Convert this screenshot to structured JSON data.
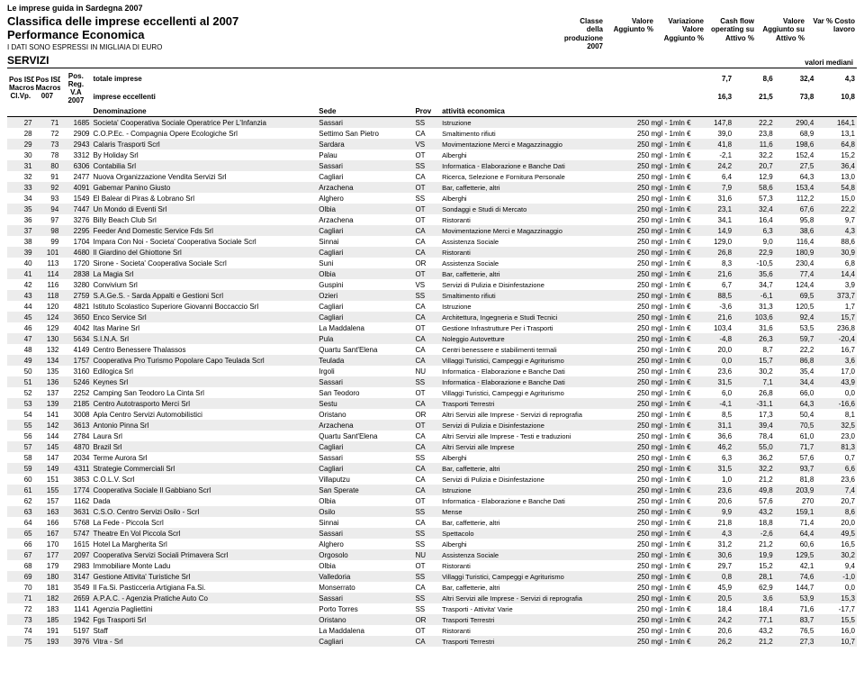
{
  "top_label": "Le imprese guida in Sardegna 2007",
  "title1": "Classifica delle imprese eccellenti al 2007",
  "title2": "Performance Economica",
  "subtitle": "I DATI SONO ESPRESSI IN MIGLIAIA DI EURO",
  "section": "SERVIZI",
  "valori_mediani": "valori mediani",
  "metric_headers": [
    [
      "Classe",
      "della produzione",
      "2007"
    ],
    [
      "Valore",
      "Aggiunto %",
      ""
    ],
    [
      "Variazione",
      "Valore",
      "Aggiunto %"
    ],
    [
      "Cash flow",
      "operating su",
      "Attivo %"
    ],
    [
      "Valore",
      "Aggiunto su",
      "Attivo %"
    ],
    [
      "Var % Costo",
      "lavoro",
      ""
    ]
  ],
  "pos_headers": [
    [
      "Pos ISD",
      "Macroset.",
      "Cl.Vp."
    ],
    [
      "Pos ISD",
      "Macroset.2",
      "007"
    ],
    [
      "Pos.",
      "Reg.",
      "V.A",
      "2007"
    ]
  ],
  "summary": [
    {
      "label": "totale imprese",
      "v": [
        "7,7",
        "8,6",
        "32,4",
        "4,3"
      ]
    },
    {
      "label": "imprese eccellenti",
      "v": [
        "16,3",
        "21,5",
        "73,8",
        "10,8"
      ]
    }
  ],
  "col_headers": [
    "Denominazione",
    "Sede",
    "Prov",
    "attività economica"
  ],
  "classe_label": "250 mgl - 1mln €",
  "rows": [
    {
      "p": [
        "27",
        "71",
        "1685"
      ],
      "d": "Societa' Cooperativa Sociale Operatrice Per L'Infanzia",
      "s": "Sassari",
      "pr": "SS",
      "a": "Istruzione",
      "v": [
        "147,8",
        "22,2",
        "290,4",
        "164,1"
      ]
    },
    {
      "p": [
        "28",
        "72",
        "2909"
      ],
      "d": "C.O.P.Ec. - Compagnia Opere Ecologiche Srl",
      "s": "Settimo San Pietro",
      "pr": "CA",
      "a": "Smaltimento rifiuti",
      "v": [
        "39,0",
        "23,8",
        "68,9",
        "13,1"
      ]
    },
    {
      "p": [
        "29",
        "73",
        "2943"
      ],
      "d": "Calaris Trasporti Scrl",
      "s": "Sardara",
      "pr": "VS",
      "a": "Movimentazione Merci e Magazzinaggio",
      "v": [
        "41,8",
        "11,6",
        "198,6",
        "64,8"
      ]
    },
    {
      "p": [
        "30",
        "78",
        "3312"
      ],
      "d": "By Holiday Srl",
      "s": "Palau",
      "pr": "OT",
      "a": "Alberghi",
      "v": [
        "-2,1",
        "32,2",
        "152,4",
        "15,2"
      ]
    },
    {
      "p": [
        "31",
        "80",
        "6306"
      ],
      "d": "Contabilia Srl",
      "s": "Sassari",
      "pr": "SS",
      "a": "Informatica - Elaborazione e Banche Dati",
      "v": [
        "24,2",
        "20,7",
        "27,5",
        "36,4"
      ]
    },
    {
      "p": [
        "32",
        "91",
        "2477"
      ],
      "d": "Nuova Organizzazione Vendita Servizi Srl",
      "s": "Cagliari",
      "pr": "CA",
      "a": "Ricerca, Selezione e Fornitura Personale",
      "v": [
        "6,4",
        "12,9",
        "64,3",
        "13,0"
      ]
    },
    {
      "p": [
        "33",
        "92",
        "4091"
      ],
      "d": "Gabemar Panino Giusto",
      "s": "Arzachena",
      "pr": "OT",
      "a": "Bar, caffetterie, altri",
      "v": [
        "7,9",
        "58,6",
        "153,4",
        "54,8"
      ]
    },
    {
      "p": [
        "34",
        "93",
        "1549"
      ],
      "d": "El Balear di Piras & Lobrano Srl",
      "s": "Alghero",
      "pr": "SS",
      "a": "Alberghi",
      "v": [
        "31,6",
        "57,3",
        "112,2",
        "15,0"
      ]
    },
    {
      "p": [
        "35",
        "94",
        "7447"
      ],
      "d": "Un Mondo di Eventi Srl",
      "s": "Olbia",
      "pr": "OT",
      "a": "Sondaggi e Studi di Mercato",
      "v": [
        "23,1",
        "32,4",
        "67,6",
        "22,2"
      ]
    },
    {
      "p": [
        "36",
        "97",
        "3276"
      ],
      "d": "Billy Beach Club Srl",
      "s": "Arzachena",
      "pr": "OT",
      "a": "Ristoranti",
      "v": [
        "34,1",
        "16,4",
        "95,8",
        "9,7"
      ]
    },
    {
      "p": [
        "37",
        "98",
        "2295"
      ],
      "d": "Feeder And Domestic Service Fds Srl",
      "s": "Cagliari",
      "pr": "CA",
      "a": "Movimentazione Merci e Magazzinaggio",
      "v": [
        "14,9",
        "6,3",
        "38,6",
        "4,3"
      ]
    },
    {
      "p": [
        "38",
        "99",
        "1704"
      ],
      "d": "Impara Con Noi - Societa' Cooperativa Sociale Scrl",
      "s": "Sinnai",
      "pr": "CA",
      "a": "Assistenza Sociale",
      "v": [
        "129,0",
        "9,0",
        "116,4",
        "88,6"
      ]
    },
    {
      "p": [
        "39",
        "101",
        "4680"
      ],
      "d": "Il Giardino del Ghiottone Srl",
      "s": "Cagliari",
      "pr": "CA",
      "a": "Ristoranti",
      "v": [
        "26,8",
        "22,9",
        "180,9",
        "30,9"
      ]
    },
    {
      "p": [
        "40",
        "113",
        "1720"
      ],
      "d": "Sirone - Societa' Cooperativa Sociale Scrl",
      "s": "Suni",
      "pr": "OR",
      "a": "Assistenza Sociale",
      "v": [
        "8,3",
        "-10,5",
        "230,4",
        "6,8"
      ]
    },
    {
      "p": [
        "41",
        "114",
        "2838"
      ],
      "d": "La Magia Srl",
      "s": "Olbia",
      "pr": "OT",
      "a": "Bar, caffetterie, altri",
      "v": [
        "21,6",
        "35,6",
        "77,4",
        "14,4"
      ]
    },
    {
      "p": [
        "42",
        "116",
        "3280"
      ],
      "d": "Convivium Srl",
      "s": "Guspini",
      "pr": "VS",
      "a": "Servizi di Pulizia e Disinfestazione",
      "v": [
        "6,7",
        "34,7",
        "124,4",
        "3,9"
      ]
    },
    {
      "p": [
        "43",
        "118",
        "2759"
      ],
      "d": "S.A.Ge.S. - Sarda Appalti e Gestioni Scrl",
      "s": "Ozieri",
      "pr": "SS",
      "a": "Smaltimento rifiuti",
      "v": [
        "88,5",
        "-6,1",
        "69,5",
        "373,7"
      ]
    },
    {
      "p": [
        "44",
        "120",
        "4821"
      ],
      "d": "Istituto Scolastico Superiore Giovanni Boccaccio Srl",
      "s": "Cagliari",
      "pr": "CA",
      "a": "Istruzione",
      "v": [
        "-3,6",
        "31,3",
        "120,5",
        "1,7"
      ]
    },
    {
      "p": [
        "45",
        "124",
        "3650"
      ],
      "d": "Enco Service Srl",
      "s": "Cagliari",
      "pr": "CA",
      "a": "Architettura, Ingegneria e Studi Tecnici",
      "v": [
        "21,6",
        "103,6",
        "92,4",
        "15,7"
      ]
    },
    {
      "p": [
        "46",
        "129",
        "4042"
      ],
      "d": "Itas Marine Srl",
      "s": "La Maddalena",
      "pr": "OT",
      "a": "Gestione Infrastrutture Per i Trasporti",
      "v": [
        "103,4",
        "31,6",
        "53,5",
        "236,8"
      ]
    },
    {
      "p": [
        "47",
        "130",
        "5634"
      ],
      "d": "S.I.N.A. Srl",
      "s": "Pula",
      "pr": "CA",
      "a": "Noleggio Autovetture",
      "v": [
        "-4,8",
        "26,3",
        "59,7",
        "-20,4"
      ]
    },
    {
      "p": [
        "48",
        "132",
        "4149"
      ],
      "d": "Centro Benessere Thalassos",
      "s": "Quartu Sant'Elena",
      "pr": "CA",
      "a": "Centri benessere e stabilimenti termali",
      "v": [
        "20,0",
        "8,7",
        "22,2",
        "16,7"
      ]
    },
    {
      "p": [
        "49",
        "134",
        "1757"
      ],
      "d": "Cooperativa Pro Turismo Popolare Capo Teulada Scrl",
      "s": "Teulada",
      "pr": "CA",
      "a": "Villaggi Turistici, Campeggi e Agriturismo",
      "v": [
        "0,0",
        "15,7",
        "86,8",
        "3,6"
      ]
    },
    {
      "p": [
        "50",
        "135",
        "3160"
      ],
      "d": "Edilogica Srl",
      "s": "Irgoli",
      "pr": "NU",
      "a": "Informatica - Elaborazione e Banche Dati",
      "v": [
        "23,6",
        "30,2",
        "35,4",
        "17,0"
      ]
    },
    {
      "p": [
        "51",
        "136",
        "5246"
      ],
      "d": "Keynes Srl",
      "s": "Sassari",
      "pr": "SS",
      "a": "Informatica - Elaborazione e Banche Dati",
      "v": [
        "31,5",
        "7,1",
        "34,4",
        "43,9"
      ]
    },
    {
      "p": [
        "52",
        "137",
        "2252"
      ],
      "d": "Camping San Teodoro La Cinta Srl",
      "s": "San Teodoro",
      "pr": "OT",
      "a": "Villaggi Turistici, Campeggi e Agriturismo",
      "v": [
        "6,0",
        "26,8",
        "66,0",
        "0,0"
      ]
    },
    {
      "p": [
        "53",
        "139",
        "2185"
      ],
      "d": "Centro Autotrasporto Merci Srl",
      "s": "Sestu",
      "pr": "CA",
      "a": "Trasporti Terrestri",
      "v": [
        "-4,1",
        "-31,1",
        "64,3",
        "-16,6"
      ]
    },
    {
      "p": [
        "54",
        "141",
        "3008"
      ],
      "d": "Apla Centro Servizi Automobilistici",
      "s": "Oristano",
      "pr": "OR",
      "a": "Altri Servizi alle Imprese - Servizi di reprografia",
      "v": [
        "8,5",
        "17,3",
        "50,4",
        "8,1"
      ]
    },
    {
      "p": [
        "55",
        "142",
        "3613"
      ],
      "d": "Antonio Pinna Srl",
      "s": "Arzachena",
      "pr": "OT",
      "a": "Servizi di Pulizia e Disinfestazione",
      "v": [
        "31,1",
        "39,4",
        "70,5",
        "32,5"
      ]
    },
    {
      "p": [
        "56",
        "144",
        "2784"
      ],
      "d": "Laura Srl",
      "s": "Quartu Sant'Elena",
      "pr": "CA",
      "a": "Altri Servizi alle Imprese - Testi e traduzioni",
      "v": [
        "36,6",
        "78,4",
        "61,0",
        "23,0"
      ]
    },
    {
      "p": [
        "57",
        "145",
        "4870"
      ],
      "d": "Brazil Srl",
      "s": "Cagliari",
      "pr": "CA",
      "a": "Altri Servizi alle Imprese",
      "v": [
        "46,2",
        "55,0",
        "71,7",
        "81,3"
      ]
    },
    {
      "p": [
        "58",
        "147",
        "2034"
      ],
      "d": "Terme Aurora Srl",
      "s": "Sassari",
      "pr": "SS",
      "a": "Alberghi",
      "v": [
        "6,3",
        "36,2",
        "57,6",
        "0,7"
      ]
    },
    {
      "p": [
        "59",
        "149",
        "4311"
      ],
      "d": "Strategie Commerciali Srl",
      "s": "Cagliari",
      "pr": "CA",
      "a": "Bar, caffetterie, altri",
      "v": [
        "31,5",
        "32,2",
        "93,7",
        "6,6"
      ]
    },
    {
      "p": [
        "60",
        "151",
        "3853"
      ],
      "d": "C.O.L.V. Scrl",
      "s": "Villaputzu",
      "pr": "CA",
      "a": "Servizi di Pulizia e Disinfestazione",
      "v": [
        "1,0",
        "21,2",
        "81,8",
        "23,6"
      ]
    },
    {
      "p": [
        "61",
        "155",
        "1774"
      ],
      "d": "Cooperativa Sociale Il Gabbiano Scrl",
      "s": "San Sperate",
      "pr": "CA",
      "a": "Istruzione",
      "v": [
        "23,6",
        "49,8",
        "203,9",
        "7,4"
      ]
    },
    {
      "p": [
        "62",
        "157",
        "1162"
      ],
      "d": "Dada",
      "s": "Olbia",
      "pr": "OT",
      "a": "Informatica - Elaborazione e Banche Dati",
      "v": [
        "20,6",
        "57,6",
        "270",
        "20,7"
      ]
    },
    {
      "p": [
        "63",
        "163",
        "3631"
      ],
      "d": "C.S.O. Centro Servizi Osilo - Scrl",
      "s": "Osilo",
      "pr": "SS",
      "a": "Mense",
      "v": [
        "9,9",
        "43,2",
        "159,1",
        "8,6"
      ]
    },
    {
      "p": [
        "64",
        "166",
        "5768"
      ],
      "d": "La Fede - Piccola Scrl",
      "s": "Sinnai",
      "pr": "CA",
      "a": "Bar, caffetterie, altri",
      "v": [
        "21,8",
        "18,8",
        "71,4",
        "20,0"
      ]
    },
    {
      "p": [
        "65",
        "167",
        "5747"
      ],
      "d": "Theatre En Vol Piccola Scrl",
      "s": "Sassari",
      "pr": "SS",
      "a": "Spettacolo",
      "v": [
        "4,3",
        "-2,6",
        "64,4",
        "49,5"
      ]
    },
    {
      "p": [
        "66",
        "170",
        "1615"
      ],
      "d": "Hotel La Margherita Srl",
      "s": "Alghero",
      "pr": "SS",
      "a": "Alberghi",
      "v": [
        "31,2",
        "21,2",
        "60,6",
        "16,5"
      ]
    },
    {
      "p": [
        "67",
        "177",
        "2097"
      ],
      "d": "Cooperativa Servizi Sociali Primavera Scrl",
      "s": "Orgosolo",
      "pr": "NU",
      "a": "Assistenza Sociale",
      "v": [
        "30,6",
        "19,9",
        "129,5",
        "30,2"
      ]
    },
    {
      "p": [
        "68",
        "179",
        "2983"
      ],
      "d": "Immobiliare Monte Ladu",
      "s": "Olbia",
      "pr": "OT",
      "a": "Ristoranti",
      "v": [
        "29,7",
        "15,2",
        "42,1",
        "9,4"
      ]
    },
    {
      "p": [
        "69",
        "180",
        "3147"
      ],
      "d": "Gestione Attivita' Turistiche Srl",
      "s": "Valledoria",
      "pr": "SS",
      "a": "Villaggi Turistici, Campeggi e Agriturismo",
      "v": [
        "0,8",
        "28,1",
        "74,6",
        "-1,0"
      ]
    },
    {
      "p": [
        "70",
        "181",
        "3549"
      ],
      "d": "Il Fa.Si. Pasticceria Artigiana Fa.Si.",
      "s": "Monserrato",
      "pr": "CA",
      "a": "Bar, caffetterie, altri",
      "v": [
        "45,9",
        "62,9",
        "144,7",
        "0,0"
      ]
    },
    {
      "p": [
        "71",
        "182",
        "2659"
      ],
      "d": "A.P.A.C. - Agenzia Pratiche Auto Co",
      "s": "Sassari",
      "pr": "SS",
      "a": "Altri Servizi alle Imprese - Servizi di reprografia",
      "v": [
        "20,5",
        "3,6",
        "53,9",
        "15,3"
      ]
    },
    {
      "p": [
        "72",
        "183",
        "1141"
      ],
      "d": "Agenzia Pagliettini",
      "s": "Porto Torres",
      "pr": "SS",
      "a": "Trasporti - Attivita' Varie",
      "v": [
        "18,4",
        "18,4",
        "71,6",
        "-17,7"
      ]
    },
    {
      "p": [
        "73",
        "185",
        "1942"
      ],
      "d": "Fgs Trasporti Srl",
      "s": "Oristano",
      "pr": "OR",
      "a": "Trasporti Terrestri",
      "v": [
        "24,2",
        "77,1",
        "83,7",
        "15,5"
      ]
    },
    {
      "p": [
        "74",
        "191",
        "5197"
      ],
      "d": "Staff",
      "s": "La Maddalena",
      "pr": "OT",
      "a": "Ristoranti",
      "v": [
        "20,6",
        "43,2",
        "76,5",
        "16,0"
      ]
    },
    {
      "p": [
        "75",
        "193",
        "3976"
      ],
      "d": "Vitra - Srl",
      "s": "Cagliari",
      "pr": "CA",
      "a": "Trasporti Terrestri",
      "v": [
        "26,2",
        "21,2",
        "27,3",
        "10,7"
      ]
    }
  ],
  "colwidths": {
    "p1": 26,
    "p2": 26,
    "p3": 30,
    "den": 220,
    "sede": 94,
    "prov": 26,
    "att": 170,
    "classe": 76,
    "v1": 40,
    "v2": 40,
    "v3": 40,
    "v4": 40
  }
}
